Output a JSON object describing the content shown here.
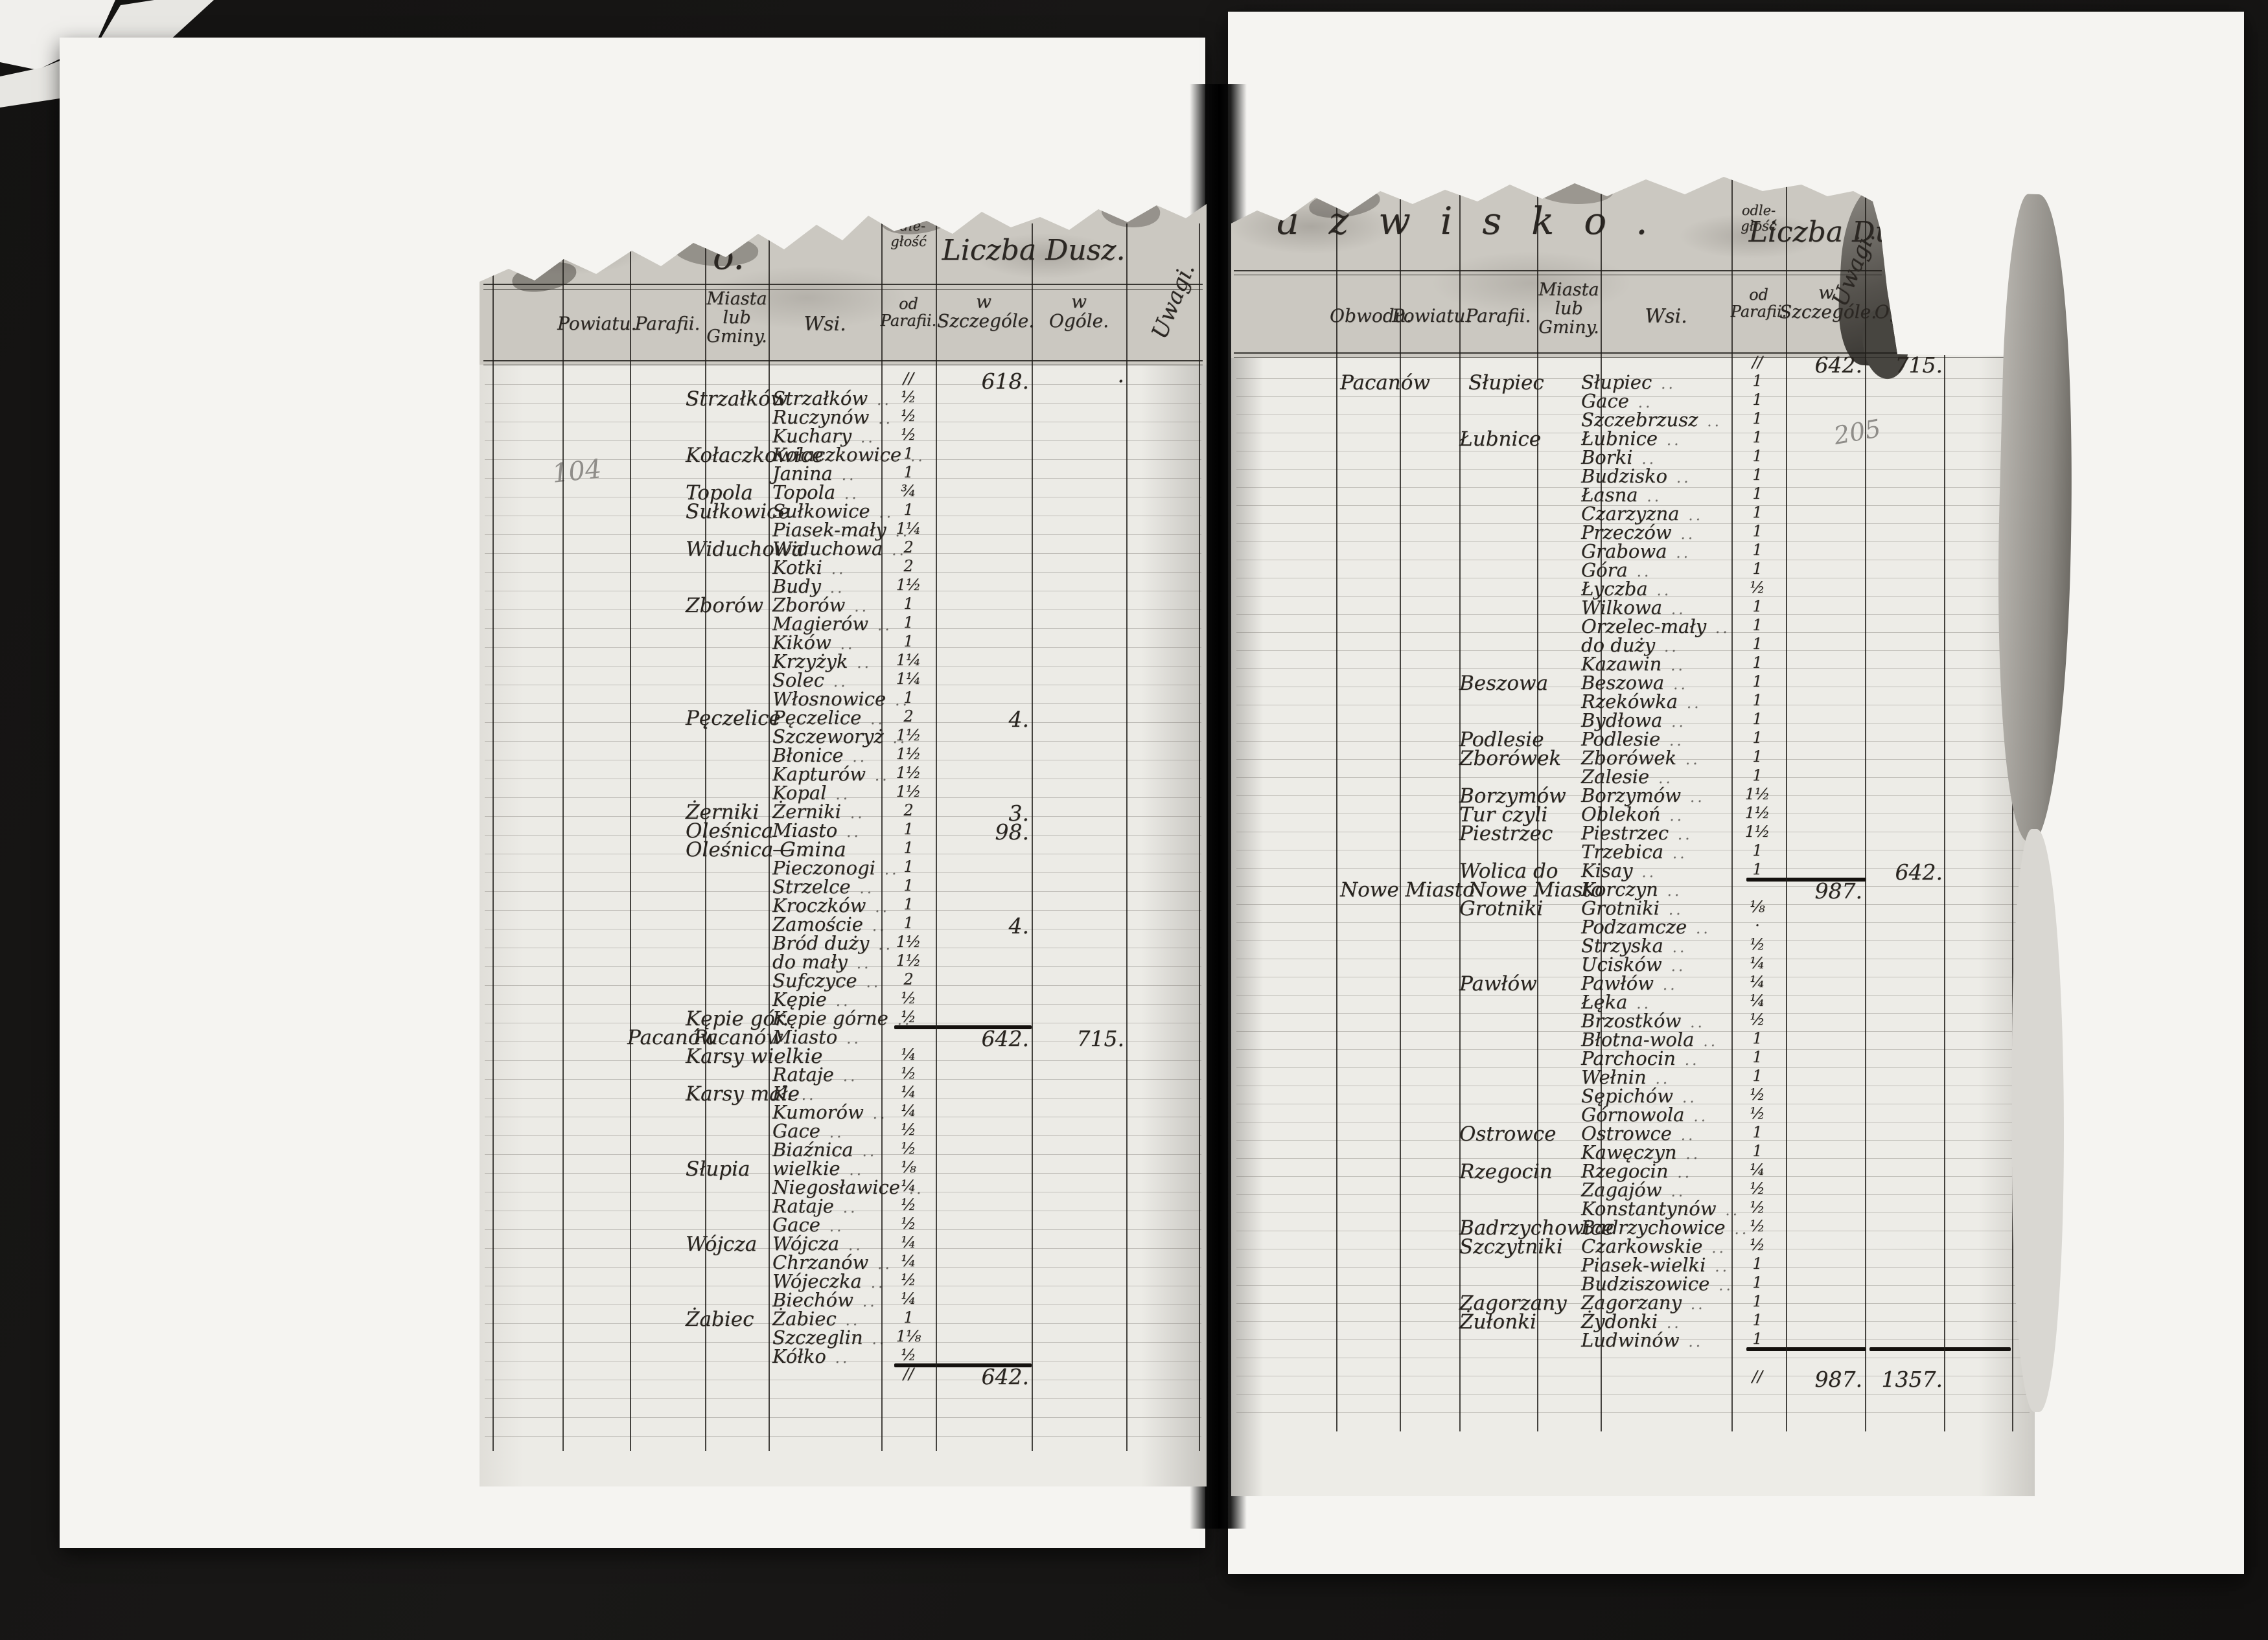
{
  "colors": {
    "paper": "#ecebe6",
    "header_strip": "#cbc8c1",
    "ink": "#2b2723",
    "pencil": "#8f8d89",
    "background": "#161514"
  },
  "left_page": {
    "pencil_note": "104",
    "header": {
      "title_fragment": "o.",
      "distance_top": "odle-",
      "distance_top2": "głość",
      "liczba_dusz": "Liczba Dusz.",
      "cols": {
        "powiatu": "Powiatu.",
        "parafii": "Parafii.",
        "miasta1": "Miasta",
        "miasta2": "lub",
        "miasta3": "Gminy.",
        "wsi": "Wsi.",
        "od1": "od",
        "od2": "Parafii.",
        "w1": "w",
        "szczegole": "Szczególe.",
        "w2": "w",
        "ogole": "Ogóle.",
        "uwagi": "Uwagi."
      }
    },
    "rows": [
      {
        "d": "∕∕",
        "s": "618.",
        "o": "·"
      },
      {
        "g": "Strzałków",
        "w": "Strzałków",
        "d": "½"
      },
      {
        "w": "Ruczynów",
        "d": "½"
      },
      {
        "w": "Kuchary",
        "d": "½"
      },
      {
        "g": "Kołaczkowice",
        "w": "Kołaczkowice",
        "d": "1"
      },
      {
        "w": "Janina",
        "d": "1"
      },
      {
        "g": "Topola",
        "w": "Topola",
        "d": "¾"
      },
      {
        "g": "Sułkowice",
        "w": "Sułkowice",
        "d": "1"
      },
      {
        "w": "Piasek-mały",
        "d": "1¼"
      },
      {
        "g": "Widuchowa",
        "w": "Widuchowa",
        "d": "2"
      },
      {
        "w": "Kotki",
        "d": "2"
      },
      {
        "w": "Budy",
        "d": "1½"
      },
      {
        "g": "Zborów",
        "w": "Zborów",
        "d": "1"
      },
      {
        "w": "Magierów",
        "d": "1"
      },
      {
        "w": "Kików",
        "d": "1"
      },
      {
        "w": "Krzyżyk",
        "d": "1¼"
      },
      {
        "w": "Solec",
        "d": "1¼"
      },
      {
        "w": "Włosnowice",
        "d": "1"
      },
      {
        "g": "Pęczelice",
        "w": "Pęczelice",
        "d": "2",
        "s": "4."
      },
      {
        "w": "Szczeworyż",
        "d": "1½"
      },
      {
        "w": "Błonice",
        "d": "1½"
      },
      {
        "w": "Kapturów",
        "d": "1½"
      },
      {
        "w": "Kopal",
        "d": "1½"
      },
      {
        "g": "Żerniki",
        "w": "Żerniki",
        "d": "2",
        "s": "3."
      },
      {
        "g": "Oleśnica",
        "w": "Miasto",
        "d": "1",
        "s": "98."
      },
      {
        "g": "Oleśnica Gmina",
        "w": "—",
        "d": "1"
      },
      {
        "w": "Pieczonogi",
        "d": "1"
      },
      {
        "w": "Strzelce",
        "d": "1"
      },
      {
        "w": "Kroczków",
        "d": "1"
      },
      {
        "w": "Zamoście",
        "d": "1",
        "s": "4."
      },
      {
        "w": "Bród duży",
        "d": "1½"
      },
      {
        "w": "do mały",
        "d": "1½"
      },
      {
        "w": "Sufczyce",
        "d": "2"
      },
      {
        "w": "Kępie",
        "d": "½"
      },
      {
        "g": "Kępie gór.",
        "w": "Kępie górne",
        "d": "½",
        "sumS": true
      },
      {
        "g": "Pacanów",
        "g2": "Pacanów",
        "w": "Miasto",
        "s": "642.",
        "o": "715."
      },
      {
        "g": "Karsy wielkie",
        "d": "¼"
      },
      {
        "w": "Rataje",
        "d": "½"
      },
      {
        "g": "Karsy małe",
        "w": "K.",
        "d": "¼"
      },
      {
        "w": "Kumorów",
        "d": "¼"
      },
      {
        "w": "Gace",
        "d": "½"
      },
      {
        "w": "Biaźnica",
        "d": "½"
      },
      {
        "g": "Słupia",
        "w": "wielkie",
        "d": "⅛"
      },
      {
        "w": "Niegosławice",
        "d": "¼"
      },
      {
        "w": "Rataje",
        "d": "½"
      },
      {
        "w": "Gace",
        "d": "½"
      },
      {
        "g": "Wójcza",
        "w": "Wójcza",
        "d": "¼"
      },
      {
        "w": "Chrzanów",
        "d": "¼"
      },
      {
        "w": "Wójeczka",
        "d": "½"
      },
      {
        "w": "Biechów",
        "d": "¼"
      },
      {
        "g": "Żabiec",
        "w": "Żabiec",
        "d": "1"
      },
      {
        "w": "Szczeglin",
        "d": "1⅛"
      },
      {
        "w": "Kółko",
        "d": "½",
        "sumS": true
      },
      {
        "d": "∕∕",
        "s": "642."
      }
    ]
  },
  "right_page": {
    "pencil_note": "205",
    "header": {
      "title": "azwisko.",
      "distance_top": "odle-",
      "distance_top2": "głość",
      "liczba_dusz": "Liczba Dusz.",
      "cols": {
        "obwodu": "Obwodu.",
        "powiatu": "Powiatu.",
        "parafii": "Parafii.",
        "miasta1": "Miasta",
        "miasta2": "lub",
        "miasta3": "Gminy.",
        "wsi": "Wsi.",
        "od1": "od",
        "od2": "Parafii.",
        "w1": "w",
        "szczegole": "Szczególe.",
        "w2": "w",
        "ogole": "Ogóle.",
        "uwagi": "Uwagi."
      }
    },
    "rows": [
      {
        "d": "∕∕",
        "s": "642.",
        "o": "715."
      },
      {
        "g": "Pacanów",
        "g2": "Słupiec",
        "w": "Słupiec",
        "d": "1"
      },
      {
        "w": "Gace",
        "d": "1"
      },
      {
        "w": "Szczebrzusz",
        "d": "1"
      },
      {
        "g": "Łubnice",
        "w": "Łubnice",
        "d": "1"
      },
      {
        "w": "Borki",
        "d": "1"
      },
      {
        "w": "Budzisko",
        "d": "1"
      },
      {
        "w": "Łasna",
        "d": "1"
      },
      {
        "w": "Czarzyzna",
        "d": "1"
      },
      {
        "w": "Przeczów",
        "d": "1"
      },
      {
        "w": "Grabowa",
        "d": "1"
      },
      {
        "w": "Góra",
        "d": "1"
      },
      {
        "w": "Łyczba",
        "d": "½"
      },
      {
        "w": "Wilkowa",
        "d": "1"
      },
      {
        "w": "Orzelec-mały",
        "d": "1"
      },
      {
        "w": "do duży",
        "d": "1"
      },
      {
        "w": "Kazawin",
        "d": "1"
      },
      {
        "g": "Beszowa",
        "w": "Beszowa",
        "d": "1"
      },
      {
        "w": "Rzekówka",
        "d": "1"
      },
      {
        "w": "Bydłowa",
        "d": "1"
      },
      {
        "g": "Podlesie",
        "w": "Podlesie",
        "d": "1"
      },
      {
        "g": "Zborówek",
        "w": "Zborówek",
        "d": "1"
      },
      {
        "w": "Zalesie",
        "d": "1"
      },
      {
        "g": "Borzymów",
        "w": "Borzymów",
        "d": "1½"
      },
      {
        "g": "Tur czyli",
        "w": "Oblekoń",
        "d": "1½"
      },
      {
        "g": "Piestrzec",
        "w": "Piestrzec",
        "d": "1½"
      },
      {
        "w": "Trzebica",
        "d": "1"
      },
      {
        "g": "Wolica do",
        "w": "Kisay",
        "d": "1",
        "o": "642.",
        "sumS": true
      },
      {
        "g": "Nowe Miasto",
        "g2": "Nowe Miasto",
        "w": "Korczyn",
        "s": "987."
      },
      {
        "g": "Grotniki",
        "w": "Grotniki",
        "d": "⅛"
      },
      {
        "w": "Podzamcze",
        "d": "·"
      },
      {
        "w": "Strzyska",
        "d": "½"
      },
      {
        "w": "Ucisków",
        "d": "¼"
      },
      {
        "g": "Pawłów",
        "w": "Pawłów",
        "d": "¼"
      },
      {
        "w": "Łęka",
        "d": "¼"
      },
      {
        "w": "Brzostków",
        "d": "½"
      },
      {
        "w": "Błotna-wola",
        "d": "1"
      },
      {
        "w": "Parchocin",
        "d": "1"
      },
      {
        "w": "Wełnin",
        "d": "1"
      },
      {
        "w": "Sępichów",
        "d": "½"
      },
      {
        "w": "Górnowola",
        "d": "½"
      },
      {
        "g": "Ostrowce",
        "w": "Ostrowce",
        "d": "1"
      },
      {
        "w": "Kawęczyn",
        "d": "1"
      },
      {
        "g": "Rzegocin",
        "w": "Rzegocin",
        "d": "¼"
      },
      {
        "w": "Zagajów",
        "d": "½"
      },
      {
        "w": "Konstantynów",
        "d": "½"
      },
      {
        "g": "Badrzychowice",
        "w": "Badrzychowice",
        "d": "½"
      },
      {
        "g": "Szczytniki",
        "w": "Czarkowskie",
        "d": "½"
      },
      {
        "w": "Piasek-wielki",
        "d": "1"
      },
      {
        "w": "Budziszowice",
        "d": "1"
      },
      {
        "g": "Zagorzany",
        "w": "Zagorzany",
        "d": "1"
      },
      {
        "g": "Żułonki",
        "w": "Żydonki",
        "d": "1"
      },
      {
        "w": "Ludwinów",
        "d": "1",
        "sumS": true,
        "sumO": true
      },
      {},
      {
        "d": "∕∕",
        "s": "987.",
        "o": "1357."
      }
    ]
  }
}
